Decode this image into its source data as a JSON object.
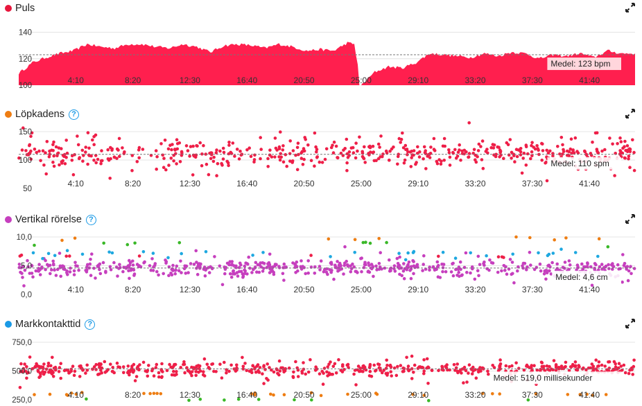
{
  "panels": [
    {
      "title": "Puls",
      "dot_color": "#e8163c",
      "help": false,
      "mean_label": "Medel: 123 bpm"
    },
    {
      "title": "Löpkadens",
      "dot_color": "#ee7d12",
      "help": true,
      "mean_label": "Medel: 110 spm"
    },
    {
      "title": "Vertikal rörelse",
      "dot_color": "#c63fbe",
      "help": true,
      "mean_label": "Medel: 4,6 cm"
    },
    {
      "title": "Markkontakttid",
      "dot_color": "#1a9ae6",
      "help": true,
      "mean_label": "Medel: 519,0 millisekunder"
    }
  ],
  "help_icon_text": "?",
  "chart_data": [
    {
      "type": "area",
      "title": "Puls",
      "x_ticks": [
        "4:10",
        "8:20",
        "12:30",
        "16:40",
        "20:50",
        "25:00",
        "29:10",
        "33:20",
        "37:30",
        "41:40"
      ],
      "y_ticks": [
        100,
        120,
        140
      ],
      "ylim": [
        100,
        145
      ],
      "mean": 123,
      "color": "#ff1f4e",
      "grid": true,
      "x": [
        "0:00",
        "1:00",
        "2:00",
        "3:00",
        "4:00",
        "5:00",
        "6:00",
        "7:00",
        "8:00",
        "9:00",
        "10:00",
        "11:00",
        "12:00",
        "13:00",
        "14:00",
        "15:00",
        "16:00",
        "17:00",
        "18:00",
        "19:00",
        "20:00",
        "21:00",
        "22:00",
        "23:00",
        "24:00",
        "24:30",
        "25:00",
        "26:00",
        "27:00",
        "28:00",
        "29:00",
        "30:00",
        "31:00",
        "32:00",
        "33:00",
        "34:00",
        "35:00",
        "36:00",
        "37:00",
        "38:00",
        "39:00",
        "40:00",
        "41:00",
        "42:00",
        "43:00",
        "44:00",
        "45:00"
      ],
      "values": [
        109,
        117,
        121,
        124,
        126,
        131,
        129,
        128,
        131,
        131,
        129,
        128,
        131,
        129,
        125,
        130,
        131,
        130,
        128,
        131,
        129,
        126,
        127,
        126,
        132,
        131,
        100,
        110,
        114,
        113,
        117,
        124,
        123,
        122,
        121,
        124,
        122,
        125,
        124,
        120,
        123,
        122,
        124,
        121,
        126,
        124,
        124
      ]
    },
    {
      "type": "scatter",
      "title": "Löpkadens",
      "x_ticks": [
        "4:10",
        "8:20",
        "12:30",
        "16:40",
        "20:50",
        "25:00",
        "29:10",
        "33:20",
        "37:30",
        "41:40"
      ],
      "y_ticks": [
        50,
        100,
        150
      ],
      "ylim": [
        50,
        150
      ],
      "mean": 110,
      "series": [
        {
          "color": "#ee1f48",
          "baseline": 112,
          "spread": 14,
          "outlier_range": [
            72,
            148
          ]
        }
      ]
    },
    {
      "type": "scatter",
      "title": "Vertikal rörelse",
      "x_ticks": [
        "4:10",
        "8:20",
        "12:30",
        "16:40",
        "20:50",
        "25:00",
        "29:10",
        "33:20",
        "37:30",
        "41:40"
      ],
      "y_ticks": [
        "0,0",
        "5,0",
        "10,0"
      ],
      "ylim": [
        0,
        10
      ],
      "mean": 4.6,
      "series": [
        {
          "color": "#c63fbe",
          "baseline": 4.6,
          "spread": 0.9
        },
        {
          "color": "#1ea8e0",
          "baseline": 7.0,
          "spread": 0.6
        },
        {
          "color": "#3ab828",
          "baseline": 8.8,
          "spread": 0.5
        },
        {
          "color": "#ee7d12",
          "baseline": 9.6,
          "spread": 0.3
        },
        {
          "color": "#ee1f48",
          "baseline": 6.6,
          "spread": 0.3
        }
      ]
    },
    {
      "type": "scatter",
      "title": "Markkontakttid",
      "x_ticks": [
        "4:10",
        "8:20",
        "12:30",
        "16:40",
        "20:50",
        "25:00",
        "29:10",
        "33:20",
        "37:30",
        "41:40"
      ],
      "y_ticks": [
        "250,0",
        "500,0",
        "750,0"
      ],
      "ylim": [
        250,
        750
      ],
      "mean": 519.0,
      "series": [
        {
          "color": "#ee1f48",
          "baseline": 515,
          "spread": 40
        },
        {
          "color": "#ee7d12",
          "baseline": 300,
          "spread": 10
        },
        {
          "color": "#3ab828",
          "baseline": 250,
          "spread": 5
        }
      ]
    }
  ]
}
